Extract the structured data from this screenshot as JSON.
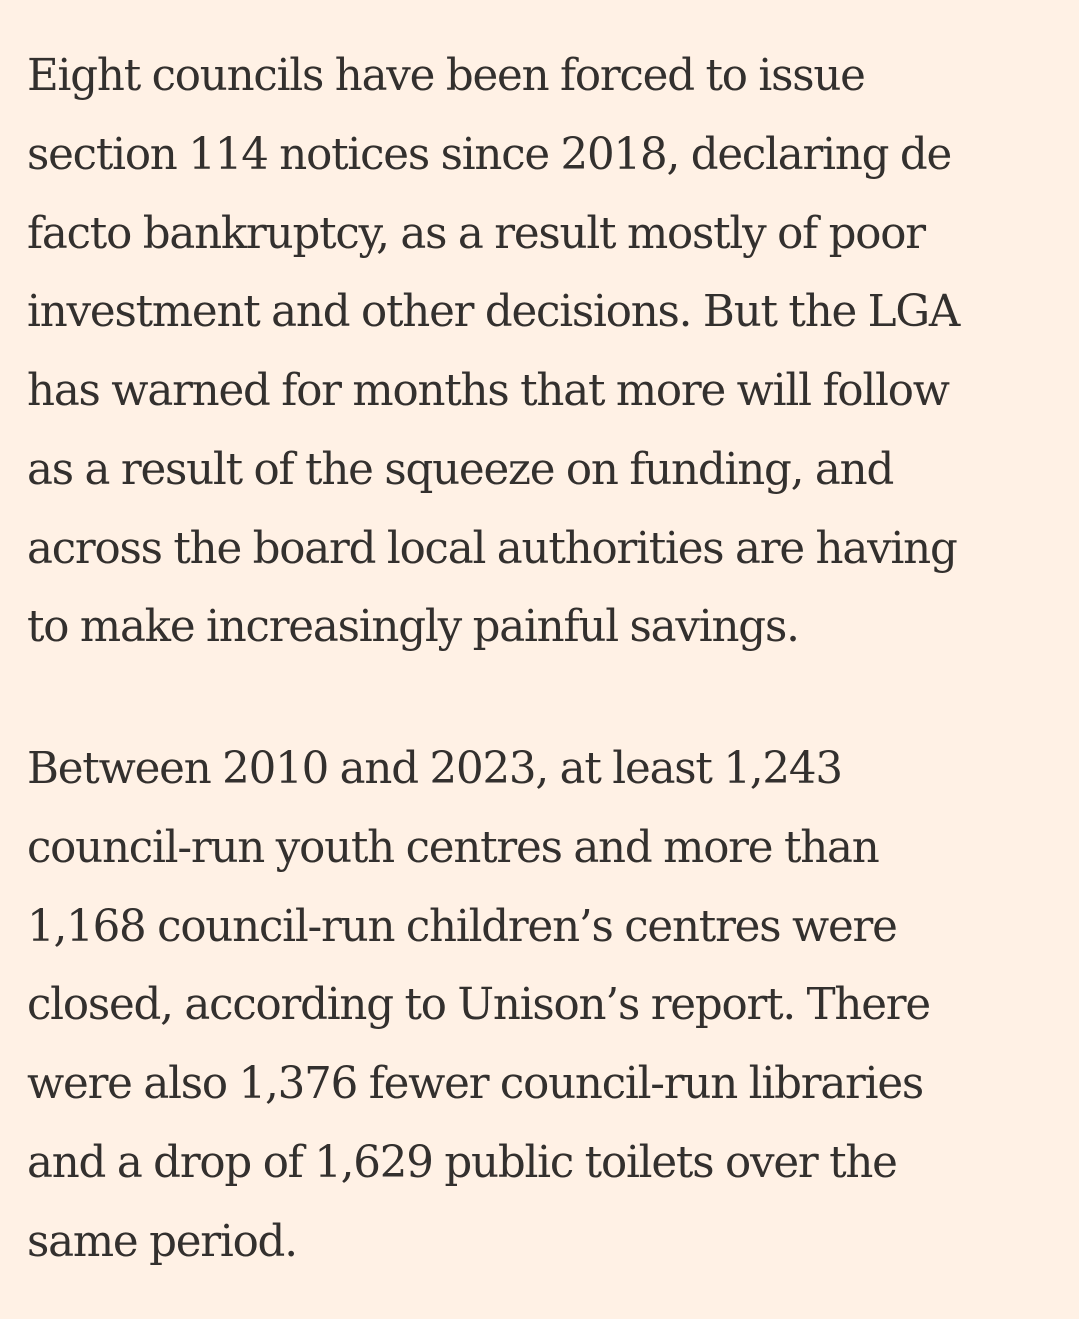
{
  "article": {
    "paragraphs": [
      {
        "lines": [
          "Eight councils have been forced to issue",
          "section 114 notices since 2018, declaring de",
          "facto bankruptcy, as a result mostly of poor",
          "investment and other decisions. But the LGA",
          "has warned for months that more will follow",
          "as a result of the squeeze on funding, and",
          "across the board local authorities are having",
          "to make increasingly painful savings."
        ]
      },
      {
        "lines": [
          "Between 2010 and 2023, at least 1,243",
          "council-run youth centres and more than",
          "1,168 council-run children’s centres were",
          "closed, according to Unison’s report. There",
          "were also 1,376 fewer council-run libraries",
          "and a drop of 1,629 public toilets over the",
          "same period."
        ]
      }
    ]
  }
}
